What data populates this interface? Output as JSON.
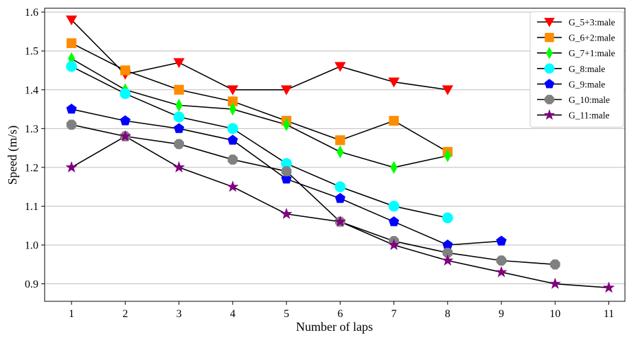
{
  "chart_data": {
    "type": "line",
    "title": "",
    "xlabel": "Number of laps",
    "ylabel": "Speed (m/s)",
    "x_ticks": [
      1,
      2,
      3,
      4,
      5,
      6,
      7,
      8,
      9,
      10,
      11
    ],
    "y_ticks": [
      "0.9",
      "1.0",
      "1.1",
      "1.2",
      "1.3",
      "1.4",
      "1.5",
      "1.6"
    ],
    "xlim": [
      0.5,
      11.3
    ],
    "ylim": [
      0.855,
      1.61
    ],
    "grid": "horizontal",
    "legend_position": "top-right",
    "line_color": "#000000",
    "series": [
      {
        "name": "G_5+3:male",
        "color": "#ff0000",
        "marker": "triangle-down",
        "x": [
          1,
          2,
          3,
          4,
          5,
          6,
          7,
          8
        ],
        "values": [
          1.58,
          1.44,
          1.47,
          1.4,
          1.4,
          1.46,
          1.42,
          1.4
        ]
      },
      {
        "name": "G_6+2:male",
        "color": "#ff8c00",
        "marker": "square",
        "x": [
          1,
          2,
          3,
          4,
          5,
          6,
          7,
          8
        ],
        "values": [
          1.52,
          1.45,
          1.4,
          1.37,
          1.32,
          1.27,
          1.32,
          1.24
        ]
      },
      {
        "name": "G_7+1:male",
        "color": "#00ff00",
        "marker": "thin-diamond",
        "x": [
          1,
          2,
          3,
          4,
          5,
          6,
          7,
          8
        ],
        "values": [
          1.48,
          1.4,
          1.36,
          1.35,
          1.31,
          1.24,
          1.2,
          1.23
        ]
      },
      {
        "name": "G_8:male",
        "color": "#00ffff",
        "marker": "circle",
        "x": [
          1,
          2,
          3,
          4,
          5,
          6,
          7,
          8
        ],
        "values": [
          1.46,
          1.39,
          1.33,
          1.3,
          1.21,
          1.15,
          1.1,
          1.07
        ]
      },
      {
        "name": "G_9:male",
        "color": "#0000ff",
        "marker": "pentagon",
        "x": [
          1,
          2,
          3,
          4,
          5,
          6,
          7,
          8,
          9
        ],
        "values": [
          1.35,
          1.32,
          1.3,
          1.27,
          1.17,
          1.12,
          1.06,
          1.0,
          1.01
        ]
      },
      {
        "name": "G_10:male",
        "color": "#808080",
        "marker": "octagon",
        "x": [
          1,
          2,
          3,
          4,
          5,
          6,
          7,
          8,
          9,
          10
        ],
        "values": [
          1.31,
          1.28,
          1.26,
          1.22,
          1.19,
          1.06,
          1.01,
          0.98,
          0.96,
          0.95
        ]
      },
      {
        "name": "G_11:male",
        "color": "#800080",
        "marker": "star",
        "x": [
          1,
          2,
          3,
          4,
          5,
          6,
          7,
          8,
          9,
          10,
          11
        ],
        "values": [
          1.2,
          1.28,
          1.2,
          1.15,
          1.08,
          1.06,
          1.0,
          0.96,
          0.93,
          0.9,
          0.89
        ]
      }
    ]
  }
}
